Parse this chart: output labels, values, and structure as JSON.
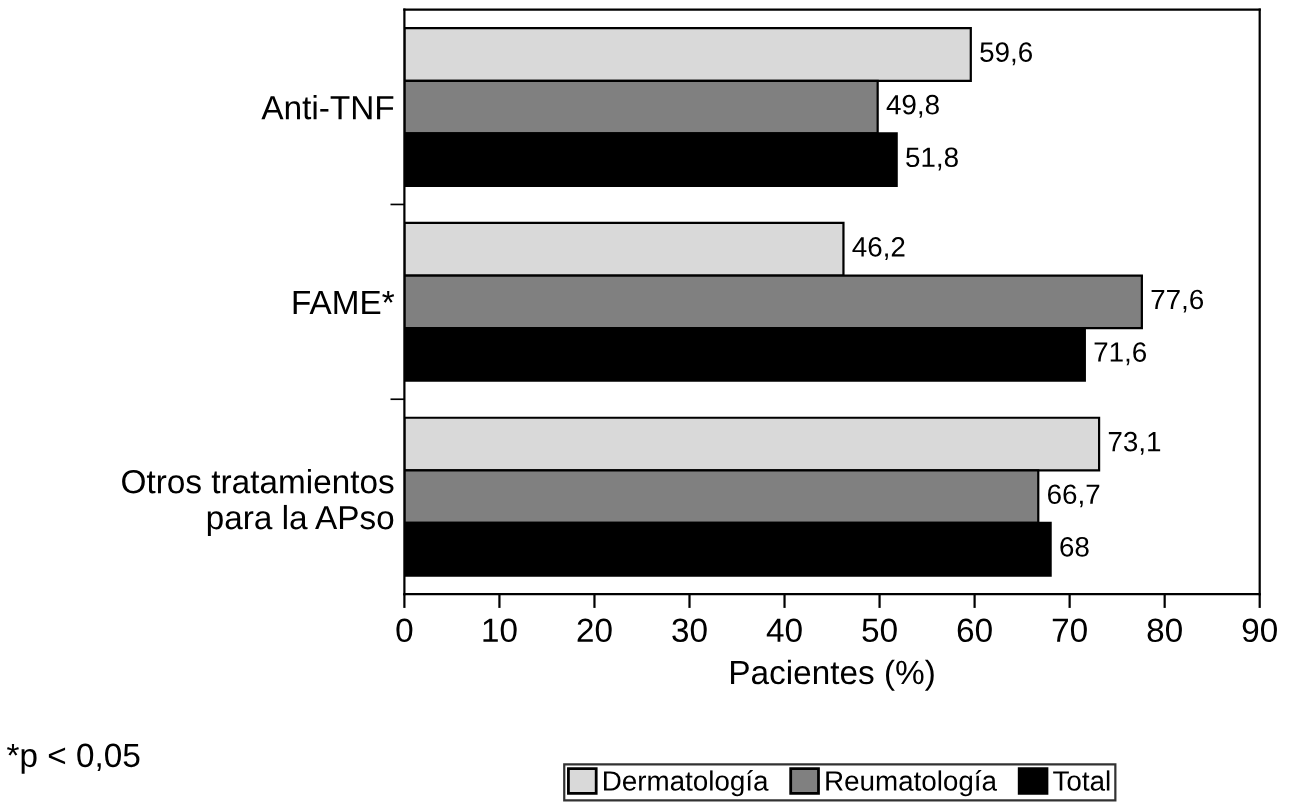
{
  "chart_data": {
    "type": "bar",
    "orientation": "horizontal",
    "xlabel": "Pacientes (%)",
    "categories": [
      "Anti-TNF",
      "FAME*",
      "Otros tratamientos\npara la APso"
    ],
    "series": [
      {
        "name": "Dermatología",
        "color": "#d9d9d9",
        "values": [
          59.6,
          46.2,
          73.1
        ],
        "value_labels": [
          "59,6",
          "46,2",
          "73,1"
        ]
      },
      {
        "name": "Reumatología",
        "color": "#808080",
        "values": [
          49.8,
          77.6,
          66.7
        ],
        "value_labels": [
          "49,8",
          "77,6",
          "66,7"
        ]
      },
      {
        "name": "Total",
        "color": "#000000",
        "values": [
          51.8,
          71.6,
          68
        ],
        "value_labels": [
          "51,8",
          "71,6",
          "68"
        ]
      }
    ],
    "xlim": [
      0,
      90
    ],
    "xticks": [
      0,
      10,
      20,
      30,
      40,
      50,
      60,
      70,
      80,
      90
    ],
    "grid": false,
    "legend": "bottom",
    "annotations": [
      "*p < 0,05"
    ]
  }
}
